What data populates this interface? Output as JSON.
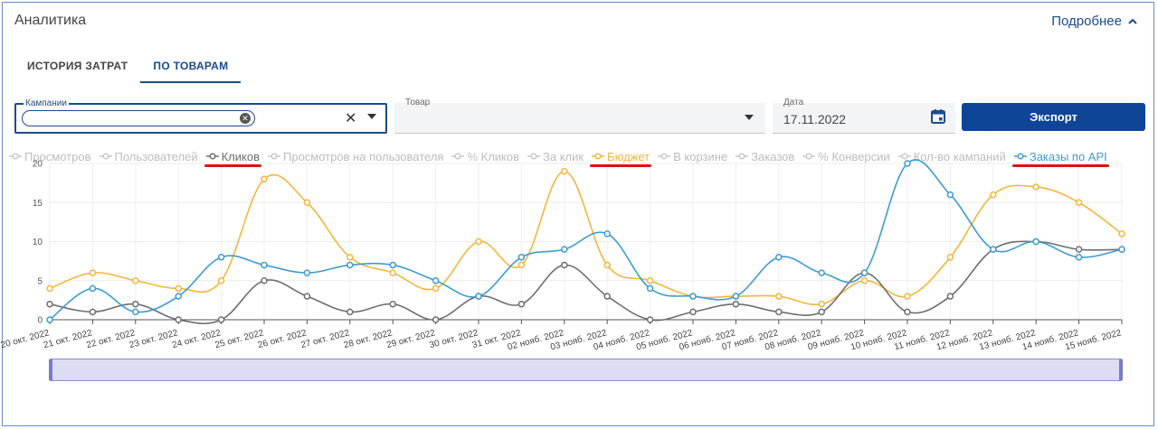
{
  "header": {
    "title": "Аналитика",
    "more_label": "Подробнее"
  },
  "tabs": [
    {
      "label": "ИСТОРИЯ ЗАТРАТ",
      "active": false
    },
    {
      "label": "ПО ТОВАРАМ",
      "active": true
    }
  ],
  "filters": {
    "campaigns_label": "Кампании",
    "goods_label": "Товар",
    "date_label": "Дата",
    "date_value": "17.11.2022",
    "export_label": "Экспорт"
  },
  "legend": [
    {
      "label": "Просмотров",
      "active": false,
      "color": "#c9c9c9"
    },
    {
      "label": "Пользователей",
      "active": false,
      "color": "#c9c9c9"
    },
    {
      "label": "Кликов",
      "active": true,
      "color": "#6b6f72",
      "underlined": true
    },
    {
      "label": "Просмотров на пользователя",
      "active": false,
      "color": "#c9c9c9"
    },
    {
      "label": "% Кликов",
      "active": false,
      "color": "#c9c9c9"
    },
    {
      "label": "За клик",
      "active": false,
      "color": "#c9c9c9"
    },
    {
      "label": "Бюджет",
      "active": true,
      "color": "#f2b63d",
      "underlined": true
    },
    {
      "label": "В корзине",
      "active": false,
      "color": "#c9c9c9"
    },
    {
      "label": "Заказов",
      "active": false,
      "color": "#c9c9c9"
    },
    {
      "label": "% Конверсии",
      "active": false,
      "color": "#c9c9c9"
    },
    {
      "label": "Кол-во кампаний",
      "active": false,
      "color": "#c9c9c9"
    },
    {
      "label": "Заказы по API",
      "active": true,
      "color": "#3f9bd0",
      "underlined": true
    }
  ],
  "chart_data": {
    "type": "line",
    "x": [
      "20 окт. 2022",
      "21 окт. 2022",
      "22 окт. 2022",
      "23 окт. 2022",
      "24 окт. 2022",
      "25 окт. 2022",
      "26 окт. 2022",
      "27 окт. 2022",
      "28 окт. 2022",
      "29 окт. 2022",
      "30 окт. 2022",
      "31 окт. 2022",
      "02 нояб. 2022",
      "03 нояб. 2022",
      "04 нояб. 2022",
      "05 нояб. 2022",
      "06 нояб. 2022",
      "07 нояб. 2022",
      "08 нояб. 2022",
      "09 нояб. 2022",
      "10 нояб. 2022",
      "11 нояб. 2022",
      "12 нояб. 2022",
      "13 нояб. 2022",
      "14 нояб. 2022",
      "15 нояб. 2022"
    ],
    "ylim": [
      0,
      20
    ],
    "yticks": [
      "0",
      "5",
      "10",
      "15",
      "20"
    ],
    "grid": true,
    "series": [
      {
        "name": "Бюджет",
        "color": "#f2b63d",
        "values": [
          4,
          6,
          5,
          4,
          5,
          18,
          15,
          8,
          6,
          4,
          10,
          7,
          19,
          7,
          5,
          3,
          3,
          3,
          2,
          5,
          3,
          8,
          16,
          17,
          15,
          11
        ]
      },
      {
        "name": "Кликов",
        "color": "#6b6f72",
        "values": [
          2,
          1,
          2,
          0,
          0,
          5,
          3,
          1,
          2,
          0,
          3,
          2,
          7,
          3,
          0,
          1,
          2,
          1,
          1,
          6,
          1,
          3,
          9,
          10,
          9,
          9
        ]
      },
      {
        "name": "Заказы по API",
        "color": "#3f9bd0",
        "values": [
          0,
          4,
          1,
          3,
          8,
          7,
          6,
          7,
          7,
          5,
          3,
          8,
          9,
          11,
          4,
          3,
          3,
          8,
          6,
          6,
          20,
          16,
          9,
          10,
          8,
          9
        ]
      }
    ]
  }
}
